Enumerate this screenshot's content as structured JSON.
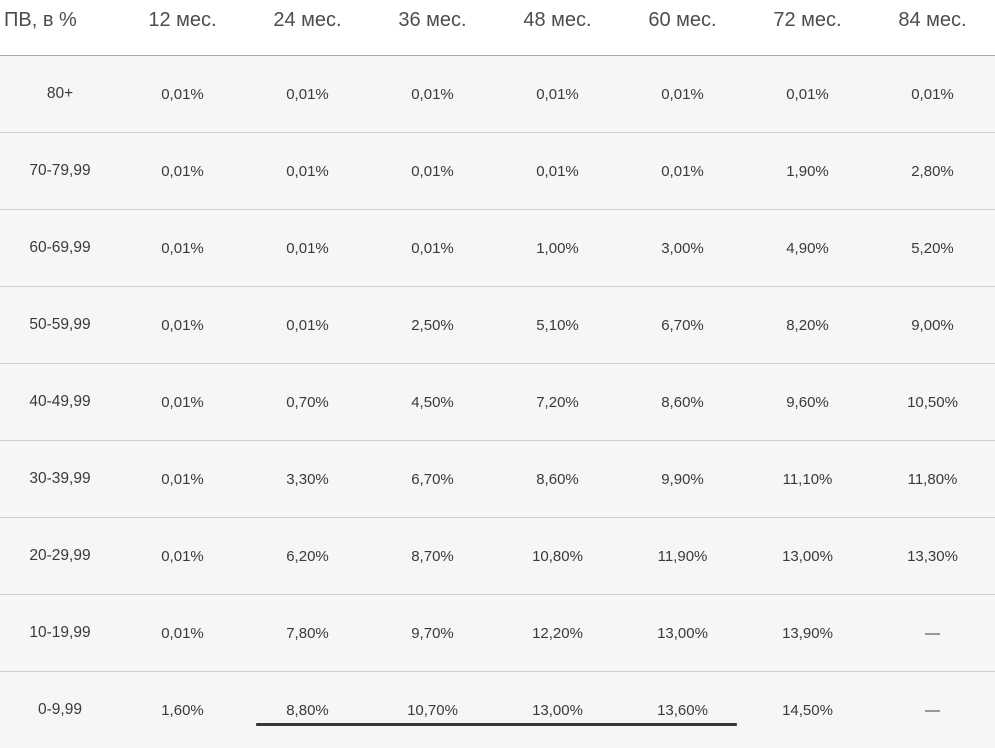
{
  "colors": {
    "row_bg": "#f6f6f6",
    "header_bg": "#ffffff",
    "text": "#3a3a3a",
    "header_text": "#4d4d4d",
    "row_line": "#cecece",
    "head_line": "#a8a8a8",
    "scrollbar_thumb": "#383838"
  },
  "chart_data": {
    "type": "table",
    "corner_label": "ПВ, в %",
    "columns": [
      "12 мес.",
      "24 мес.",
      "36 мес.",
      "48 мес.",
      "60 мес.",
      "72 мес.",
      "84 мес."
    ],
    "rows": [
      {
        "label": "80+",
        "values": [
          "0,01%",
          "0,01%",
          "0,01%",
          "0,01%",
          "0,01%",
          "0,01%",
          "0,01%"
        ]
      },
      {
        "label": "70-79,99",
        "values": [
          "0,01%",
          "0,01%",
          "0,01%",
          "0,01%",
          "0,01%",
          "1,90%",
          "2,80%"
        ]
      },
      {
        "label": "60-69,99",
        "values": [
          "0,01%",
          "0,01%",
          "0,01%",
          "1,00%",
          "3,00%",
          "4,90%",
          "5,20%"
        ]
      },
      {
        "label": "50-59,99",
        "values": [
          "0,01%",
          "0,01%",
          "2,50%",
          "5,10%",
          "6,70%",
          "8,20%",
          "9,00%"
        ]
      },
      {
        "label": "40-49,99",
        "values": [
          "0,01%",
          "0,70%",
          "4,50%",
          "7,20%",
          "8,60%",
          "9,60%",
          "10,50%"
        ]
      },
      {
        "label": "30-39,99",
        "values": [
          "0,01%",
          "3,30%",
          "6,70%",
          "8,60%",
          "9,90%",
          "11,10%",
          "11,80%"
        ]
      },
      {
        "label": "20-29,99",
        "values": [
          "0,01%",
          "6,20%",
          "8,70%",
          "10,80%",
          "11,90%",
          "13,00%",
          "13,30%"
        ]
      },
      {
        "label": "10-19,99",
        "values": [
          "0,01%",
          "7,80%",
          "9,70%",
          "12,20%",
          "13,00%",
          "13,90%",
          "—"
        ]
      },
      {
        "label": "0-9,99",
        "values": [
          "1,60%",
          "8,80%",
          "10,70%",
          "13,00%",
          "13,60%",
          "14,50%",
          "—"
        ]
      }
    ]
  }
}
